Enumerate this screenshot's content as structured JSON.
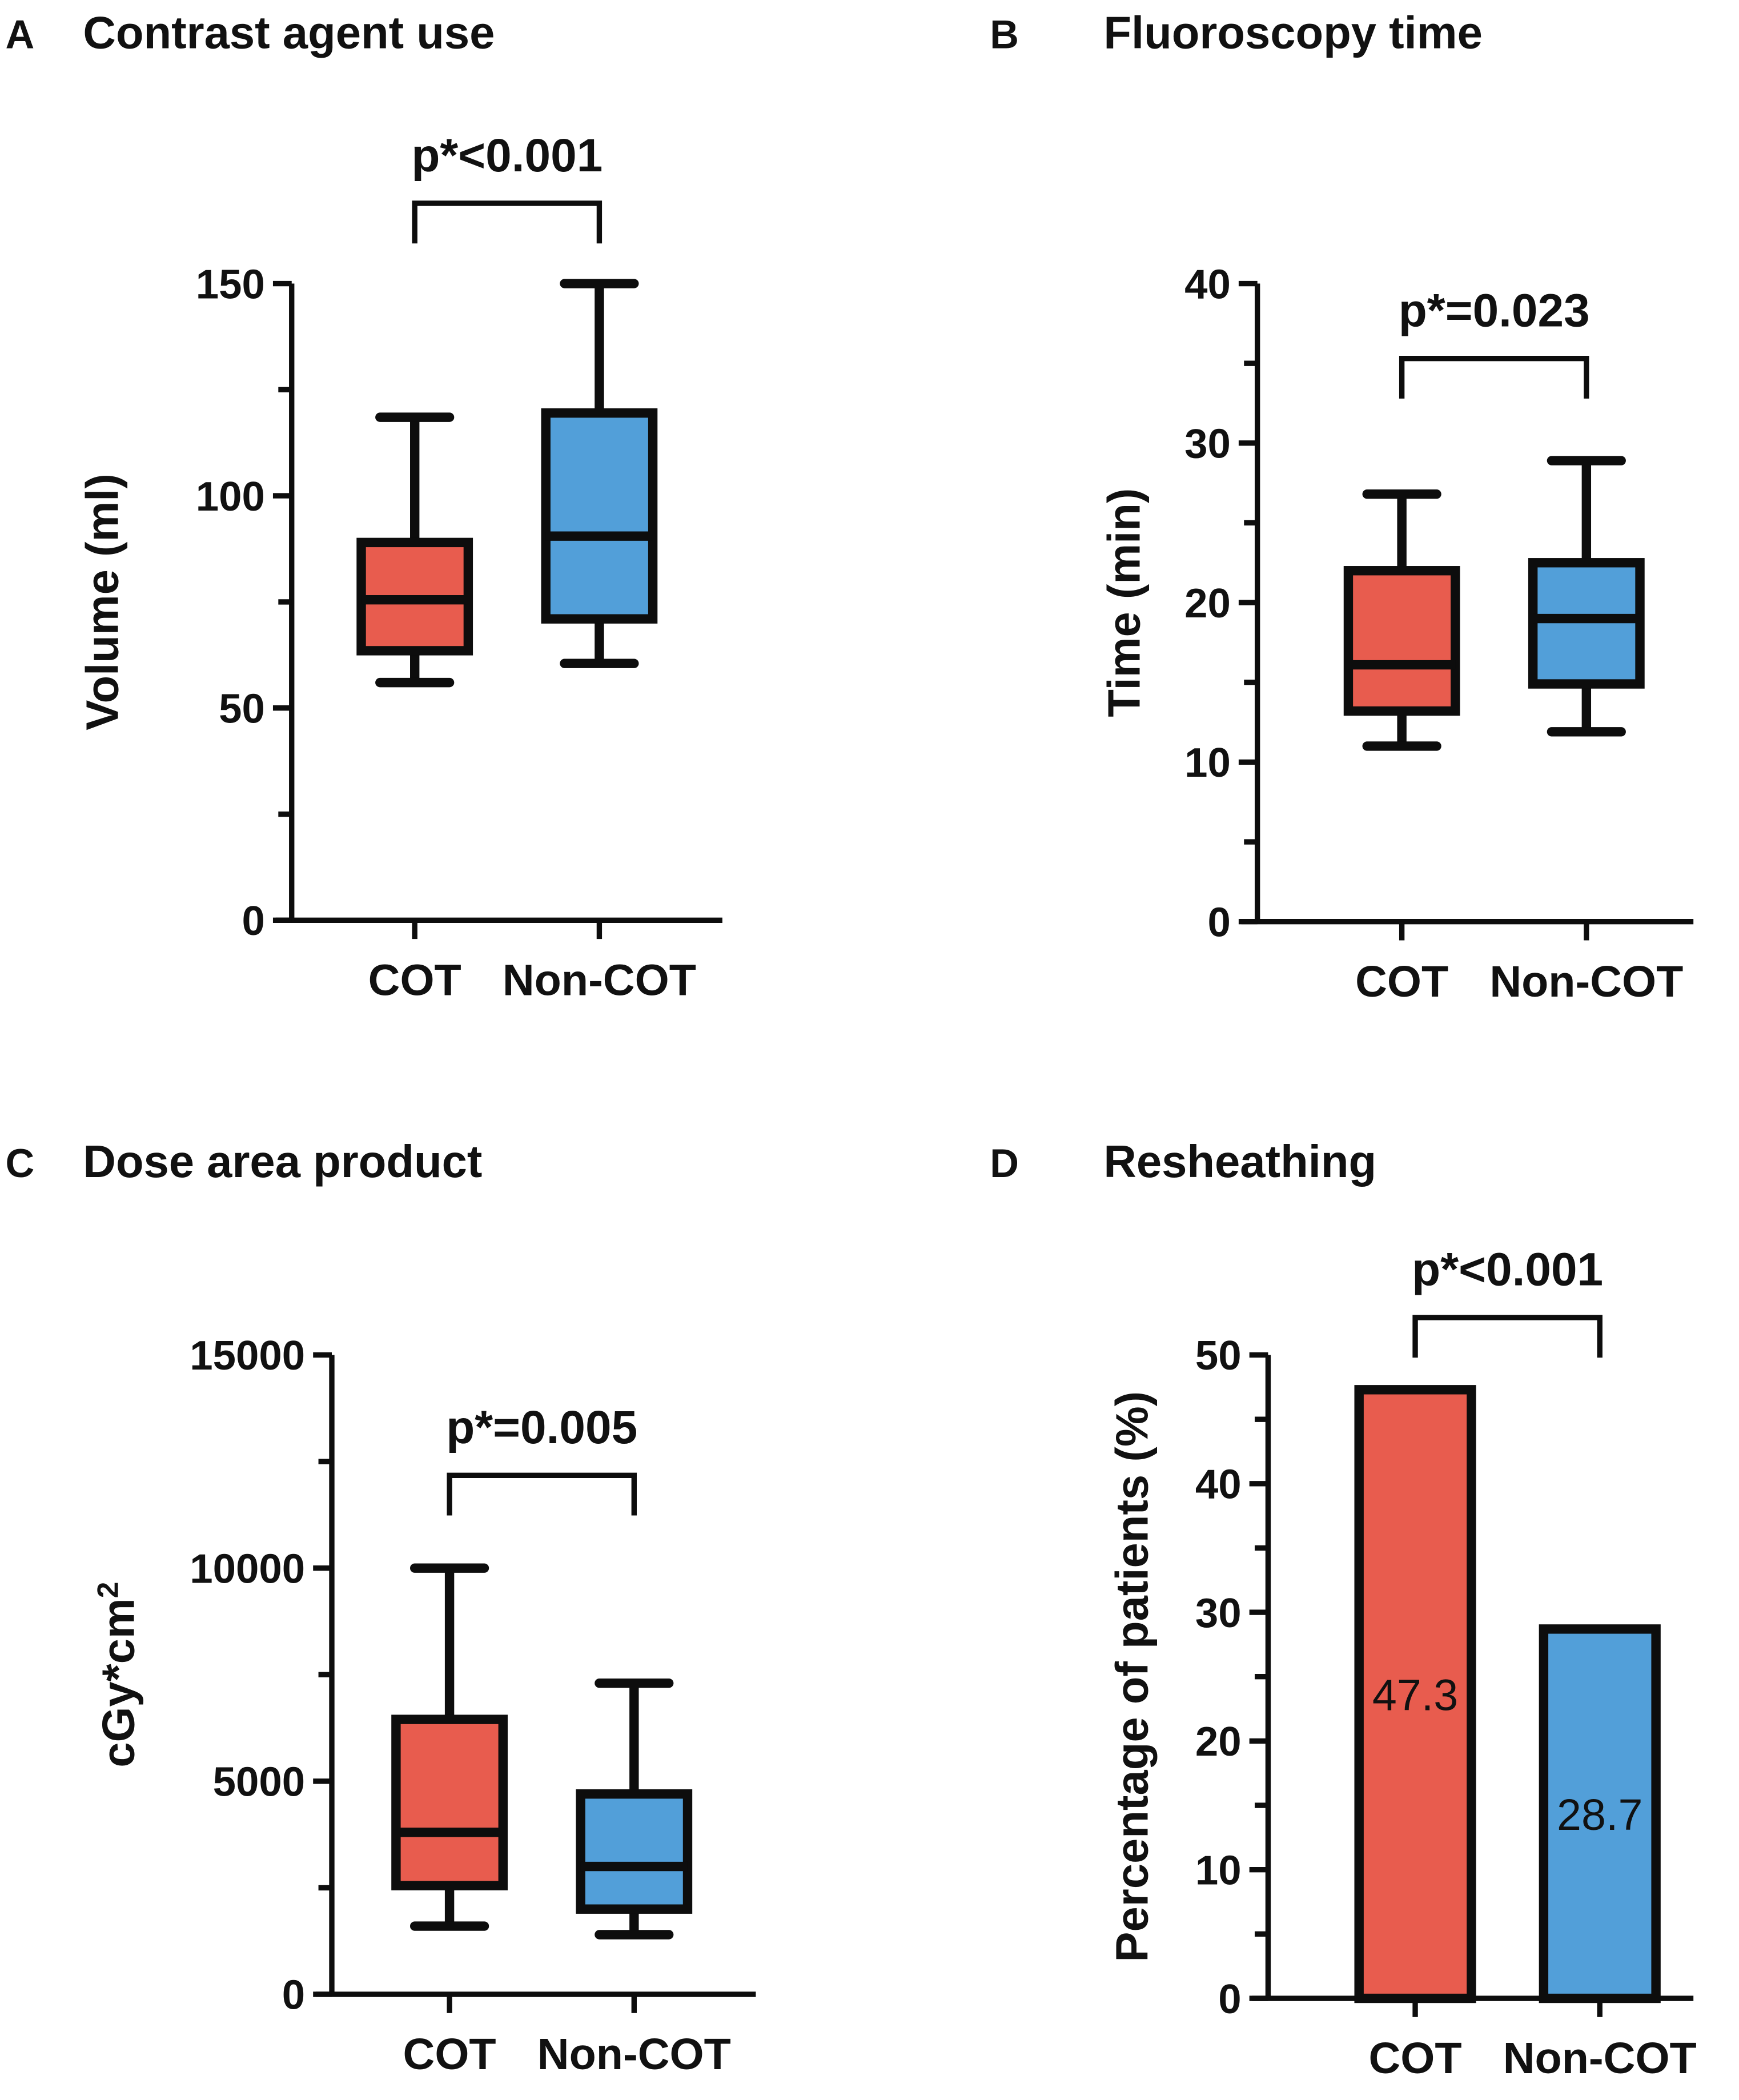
{
  "colors": {
    "cot": "#E85C4E",
    "noncot": "#529FD9",
    "stroke": "#0d0d0d"
  },
  "chart_data": [
    {
      "panel": "A",
      "type": "box",
      "title": "Contrast agent use",
      "ylabel": "Volume (ml)",
      "ylim": [
        0,
        150
      ],
      "yticks": [
        0,
        50,
        100,
        150
      ],
      "minor_step": 25,
      "categories": [
        "COT",
        "Non-COT"
      ],
      "series": [
        {
          "name": "COT",
          "min": 56,
          "q1": 63.5,
          "median": 75.5,
          "q3": 89,
          "max": 118.5
        },
        {
          "name": "Non-COT",
          "min": 60.5,
          "q1": 71,
          "median": 90.5,
          "q3": 119.5,
          "max": 150
        }
      ],
      "annotation": "p*<0.001"
    },
    {
      "panel": "B",
      "type": "box",
      "title": "Fluoroscopy time",
      "ylabel": "Time (min)",
      "ylim": [
        0,
        40
      ],
      "yticks": [
        0,
        10,
        20,
        30,
        40
      ],
      "minor_step": 5,
      "categories": [
        "COT",
        "Non-COT"
      ],
      "series": [
        {
          "name": "COT",
          "min": 11,
          "q1": 13.2,
          "median": 16.1,
          "q3": 22,
          "max": 26.8
        },
        {
          "name": "Non-COT",
          "min": 11.9,
          "q1": 14.9,
          "median": 19,
          "q3": 22.5,
          "max": 28.9
        }
      ],
      "annotation": "p*=0.023"
    },
    {
      "panel": "C",
      "type": "box",
      "title": "Dose area product",
      "ylabel": "cGy*cm",
      "ylabel_sup": "2",
      "ylim": [
        0,
        15000
      ],
      "yticks": [
        0,
        5000,
        10000,
        15000
      ],
      "minor_step": 2500,
      "categories": [
        "COT",
        "Non-COT"
      ],
      "series": [
        {
          "name": "COT",
          "min": 1600,
          "q1": 2550,
          "median": 3800,
          "q3": 6450,
          "max": 10000
        },
        {
          "name": "Non-COT",
          "min": 1400,
          "q1": 2000,
          "median": 3000,
          "q3": 4700,
          "max": 7300
        }
      ],
      "annotation": "p*=0.005"
    },
    {
      "panel": "D",
      "type": "bar",
      "title": "Resheathing",
      "ylabel": "Percentage of patients (%)",
      "ylim": [
        0,
        50
      ],
      "yticks": [
        0,
        10,
        20,
        30,
        40,
        50
      ],
      "minor_step": 5,
      "categories": [
        "COT",
        "Non-COT"
      ],
      "values": [
        47.3,
        28.7
      ],
      "value_labels": [
        "47.3",
        "28.7"
      ],
      "annotation": "p*<0.001"
    }
  ]
}
